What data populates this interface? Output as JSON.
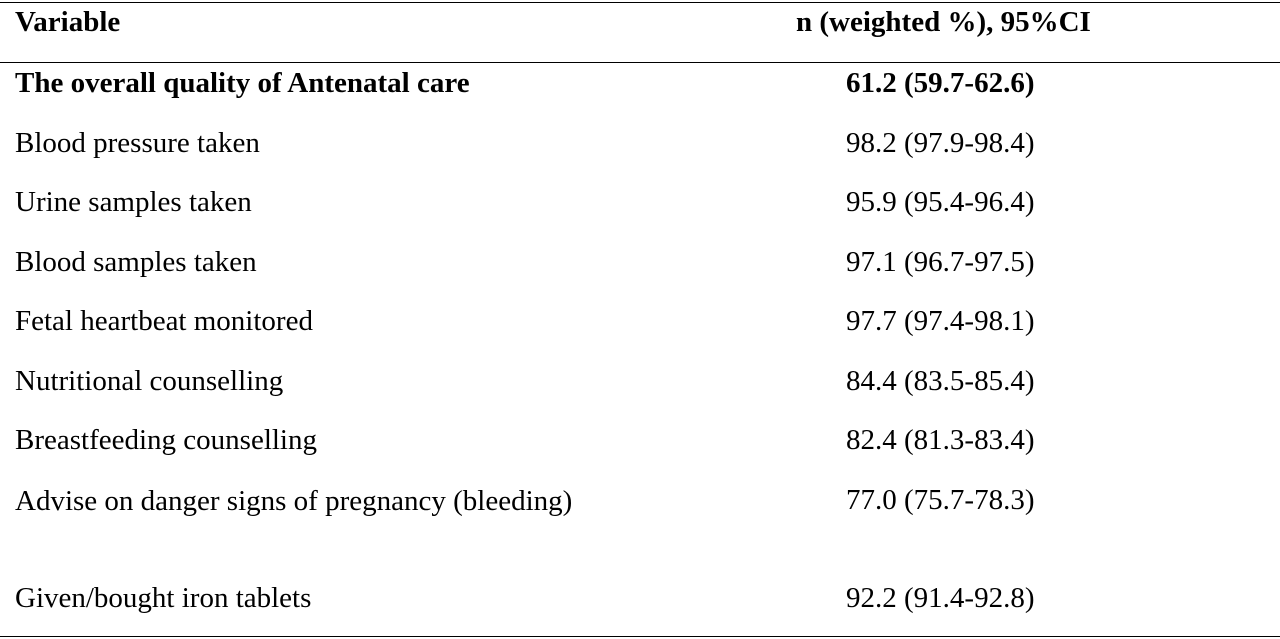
{
  "table": {
    "headers": {
      "variable": "Variable",
      "value": "n (weighted %), 95%CI"
    },
    "rows": [
      {
        "variable": "The overall quality of Antenatal care",
        "value": "61.2 (59.7-62.6)",
        "bold": true
      },
      {
        "variable": "Blood pressure taken",
        "value": "98.2 (97.9-98.4)"
      },
      {
        "variable": "Urine samples taken",
        "value": "95.9 (95.4-96.4)"
      },
      {
        "variable": "Blood samples taken",
        "value": "97.1 (96.7-97.5)"
      },
      {
        "variable": "Fetal heartbeat monitored",
        "value": "97.7 (97.4-98.1)"
      },
      {
        "variable": "Nutritional counselling",
        "value": "84.4 (83.5-85.4)"
      },
      {
        "variable": "Breastfeeding counselling",
        "value": "82.4 (81.3-83.4)"
      },
      {
        "variable": "Advise on danger signs of pregnancy (bleeding)",
        "value": "77.0 (75.7-78.3)"
      },
      {
        "variable": "Given/bought iron tablets",
        "value": "92.2 (91.4-92.8)"
      }
    ]
  }
}
